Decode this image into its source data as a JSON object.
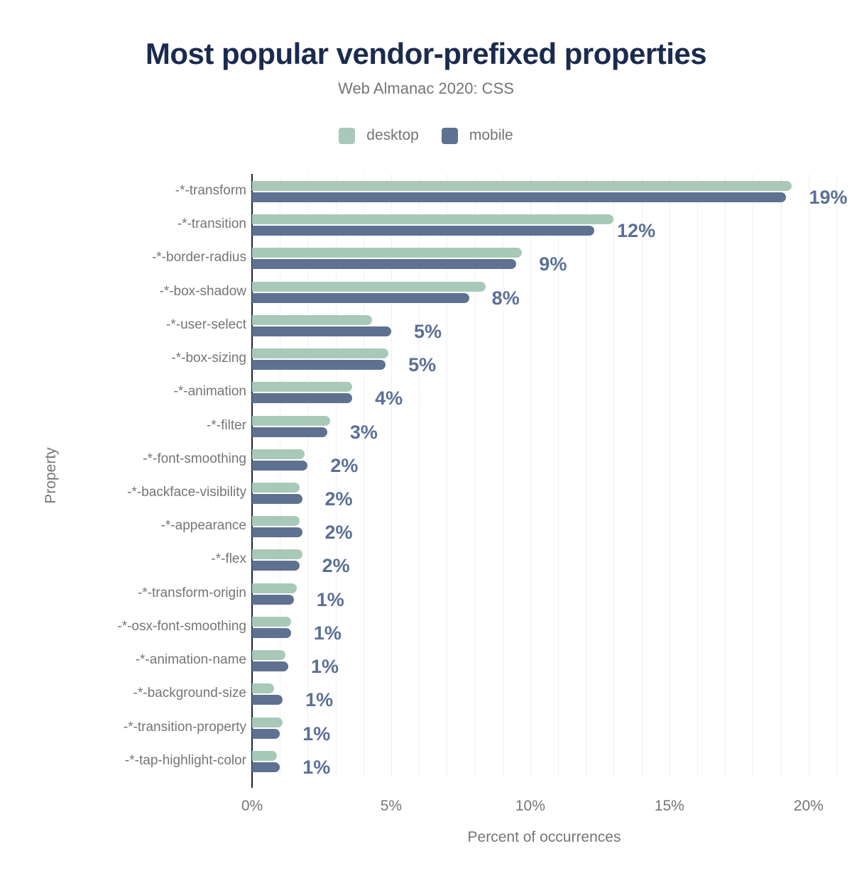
{
  "chart_data": {
    "type": "bar",
    "orientation": "horizontal",
    "title": "Most popular vendor-prefixed properties",
    "subtitle": "Web Almanac 2020: CSS",
    "xlabel": "Percent of occurrences",
    "ylabel": "Property",
    "xlim": [
      0,
      21
    ],
    "grid": true,
    "grid_step": 1,
    "legend_position": "top",
    "x_ticks": [
      {
        "value": 0,
        "label": "0%"
      },
      {
        "value": 5,
        "label": "5%"
      },
      {
        "value": 10,
        "label": "10%"
      },
      {
        "value": 15,
        "label": "15%"
      },
      {
        "value": 20,
        "label": "20%"
      }
    ],
    "categories": [
      "-*-transform",
      "-*-transition",
      "-*-border-radius",
      "-*-box-shadow",
      "-*-user-select",
      "-*-box-sizing",
      "-*-animation",
      "-*-filter",
      "-*-font-smoothing",
      "-*-backface-visibility",
      "-*-appearance",
      "-*-flex",
      "-*-transform-origin",
      "-*-osx-font-smoothing",
      "-*-animation-name",
      "-*-background-size",
      "-*-transition-property",
      "-*-tap-highlight-color"
    ],
    "series": [
      {
        "name": "desktop",
        "color": "#a8c9b7",
        "values": [
          19.4,
          13.0,
          9.7,
          8.4,
          4.3,
          4.9,
          3.6,
          2.8,
          1.9,
          1.7,
          1.7,
          1.8,
          1.6,
          1.4,
          1.2,
          0.8,
          1.1,
          0.9
        ]
      },
      {
        "name": "mobile",
        "color": "#5f7191",
        "values": [
          19.2,
          12.3,
          9.5,
          7.8,
          5.0,
          4.8,
          3.6,
          2.7,
          2.0,
          1.8,
          1.8,
          1.7,
          1.5,
          1.4,
          1.3,
          1.1,
          1.0,
          1.0
        ]
      }
    ],
    "value_labels": [
      "19%",
      "12%",
      "9%",
      "8%",
      "5%",
      "5%",
      "4%",
      "3%",
      "2%",
      "2%",
      "2%",
      "2%",
      "1%",
      "1%",
      "1%",
      "1%",
      "1%",
      "1%"
    ],
    "colors": {
      "title": "#1b2a4f",
      "text": "#757575",
      "value_label": "#5a7096",
      "axis_line": "#1b2437",
      "gridline": "#f0f0f3",
      "background": "#ffffff"
    }
  }
}
